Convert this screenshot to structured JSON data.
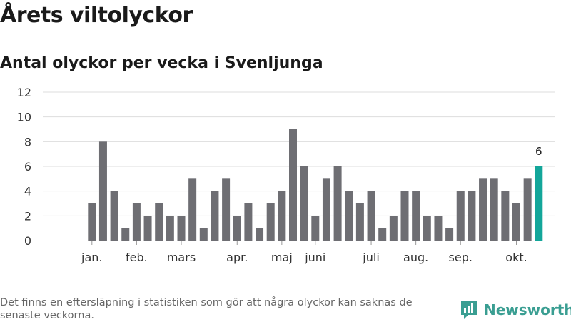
{
  "header": {
    "title": "Årets viltolyckor",
    "subtitle": "Antal olyckor per vecka i Svenljunga"
  },
  "footer": {
    "note": "Det finns en eftersläpning i statistiken som gör att några olyckor kan saknas de senaste veckorna.",
    "brand": "Newsworthy"
  },
  "colors": {
    "bar": "#6e6e73",
    "highlight": "#13a69a",
    "grid": "#dddddd",
    "brand": "#3a9e92"
  },
  "chart_data": {
    "type": "bar",
    "title": "Antal olyckor per vecka i Svenljunga",
    "xlabel": "",
    "ylabel": "",
    "ylim": [
      0,
      12
    ],
    "yticks": [
      0,
      2,
      4,
      6,
      8,
      10,
      12
    ],
    "grid": true,
    "weeks": [
      1,
      2,
      3,
      4,
      5,
      6,
      7,
      8,
      9,
      10,
      11,
      12,
      13,
      14,
      15,
      16,
      17,
      18,
      19,
      20,
      21,
      22,
      23,
      24,
      25,
      26,
      27,
      28,
      29,
      30,
      31,
      32,
      33,
      34,
      35,
      36,
      37,
      38,
      39,
      40,
      41,
      42,
      43
    ],
    "values": [
      0,
      0,
      3,
      8,
      4,
      1,
      3,
      2,
      3,
      2,
      2,
      5,
      1,
      4,
      5,
      2,
      3,
      1,
      3,
      4,
      9,
      6,
      2,
      5,
      6,
      4,
      3,
      4,
      1,
      2,
      4,
      4,
      2,
      2,
      1,
      4,
      4,
      5,
      5,
      4,
      3,
      5,
      6
    ],
    "highlight_index": 42,
    "highlight_label": "6",
    "month_labels": [
      {
        "label": "jan.",
        "week": 3
      },
      {
        "label": "feb.",
        "week": 7
      },
      {
        "label": "mars",
        "week": 11
      },
      {
        "label": "apr.",
        "week": 16
      },
      {
        "label": "maj",
        "week": 20
      },
      {
        "label": "juni",
        "week": 23
      },
      {
        "label": "juli",
        "week": 28
      },
      {
        "label": "aug.",
        "week": 32
      },
      {
        "label": "sep.",
        "week": 36
      },
      {
        "label": "okt.",
        "week": 41
      }
    ]
  }
}
